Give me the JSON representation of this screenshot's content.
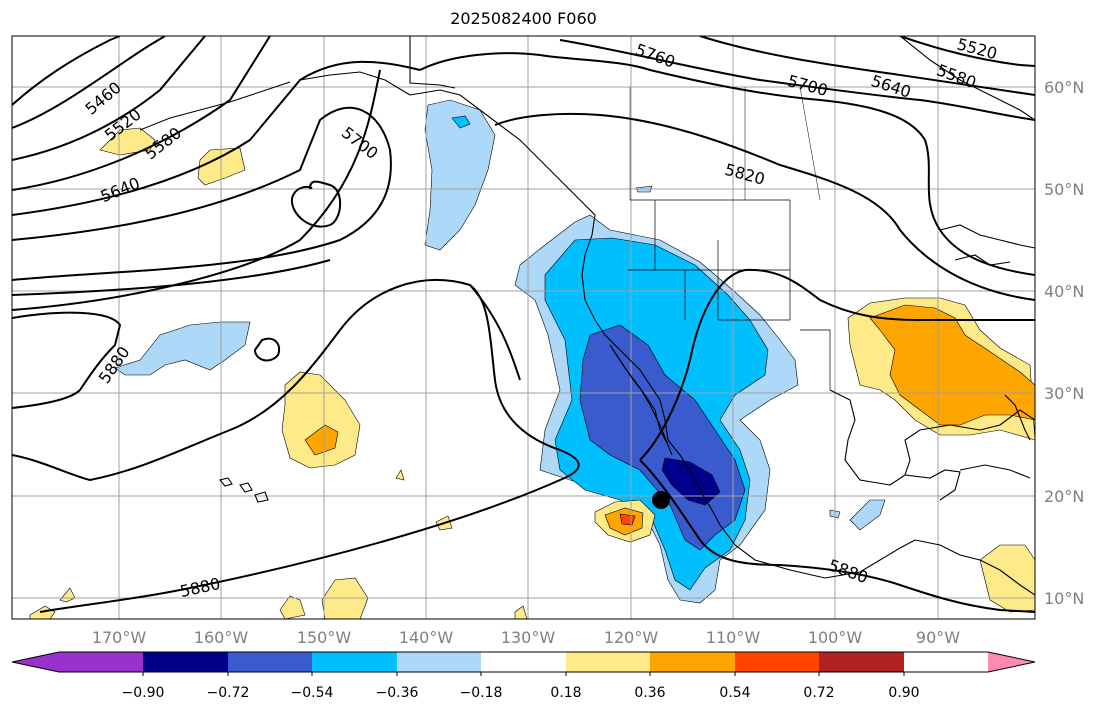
{
  "title": "2025082400 F060",
  "longitude_labels": [
    "170°W",
    "160°W",
    "150°W",
    "140°W",
    "130°W",
    "120°W",
    "110°W",
    "100°W",
    "90°W"
  ],
  "latitude_labels": [
    "60°N",
    "50°N",
    "40°N",
    "30°N",
    "20°N",
    "10°N"
  ],
  "colorbar": {
    "tick_labels": [
      "−0.90",
      "−0.72",
      "−0.54",
      "−0.36",
      "−0.18",
      "0.18",
      "0.36",
      "0.54",
      "0.72",
      "0.90"
    ],
    "colors": [
      "#9932cc",
      "#00008b",
      "#3a5bcd",
      "#00bfff",
      "#add8f8",
      "#ffffff",
      "#ffea8a",
      "#ffa500",
      "#ff4500",
      "#b22222",
      "#ff89b0"
    ]
  },
  "contour_labels": [
    "5460",
    "5520",
    "5580",
    "5640",
    "5700",
    "5760",
    "5700",
    "5640",
    "5580",
    "5520",
    "5820",
    "5880",
    "5880",
    "5880"
  ],
  "markers": {
    "point_lon": "116.5°W",
    "point_lat": "19.5°N"
  }
}
